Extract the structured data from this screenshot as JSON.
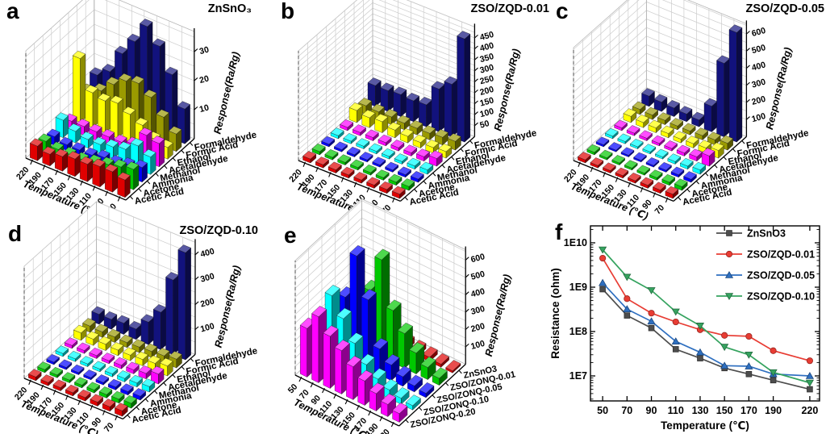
{
  "figure": {
    "background": "#ffffff"
  },
  "chart_data": [
    {
      "id": "a",
      "type": "bar3d",
      "letter": "a",
      "title": "ZnSnO₃",
      "xlabel": "Temperature (℃)",
      "zlabel": "Response(Ra/Rg)",
      "temps": [
        "220",
        "190",
        "170",
        "150",
        "130",
        "110",
        "90",
        "70"
      ],
      "zticks": [
        10,
        20,
        30
      ],
      "zmax": 37,
      "rows": [
        {
          "label": "Formaldehyde",
          "color": "#12127D",
          "values": [
            11,
            14,
            22,
            28,
            35,
            30,
            22,
            12
          ]
        },
        {
          "label": "Formic Acid",
          "color": "#9A9A00",
          "values": [
            8,
            10,
            14,
            17,
            18,
            15,
            10,
            6
          ]
        },
        {
          "label": "Ethanol",
          "color": "#FFFF00",
          "values": [
            22,
            12,
            11,
            12,
            10,
            8,
            5,
            4
          ]
        },
        {
          "label": "Acetaldehyde",
          "color": "#FF00FF",
          "values": [
            3,
            3,
            3,
            3,
            3,
            4,
            9,
            8
          ]
        },
        {
          "label": "Methanol",
          "color": "#00FFFF",
          "values": [
            6,
            4,
            3,
            3,
            4,
            5,
            8,
            6
          ]
        },
        {
          "label": "Ammonia",
          "color": "#0000FF",
          "values": [
            3,
            2,
            2,
            2,
            3,
            3,
            4,
            5
          ]
        },
        {
          "label": "Acetone",
          "color": "#00C800",
          "values": [
            4,
            3,
            3,
            3,
            4,
            5,
            6,
            7
          ]
        },
        {
          "label": "Acetic Acid",
          "color": "#E00000",
          "values": [
            5,
            4,
            5,
            6,
            6,
            7,
            7,
            6
          ]
        }
      ]
    },
    {
      "id": "b",
      "type": "bar3d",
      "letter": "b",
      "title": "ZSO/ZQD-0.01",
      "xlabel": "Temperature (℃)",
      "zlabel": "Response(Ra/Rg)",
      "temps": [
        "220",
        "190",
        "170",
        "150",
        "130",
        "110",
        "90",
        "70"
      ],
      "zticks": [
        50,
        100,
        150,
        200,
        250,
        300,
        350,
        400,
        450
      ],
      "zmax": 500,
      "rows": [
        {
          "label": "Formaldehyde",
          "color": "#12127D",
          "values": [
            95,
            95,
            100,
            95,
            100,
            195,
            240,
            470
          ]
        },
        {
          "label": "Formic Acid",
          "color": "#9A9A00",
          "values": [
            40,
            35,
            35,
            30,
            30,
            30,
            35,
            40
          ]
        },
        {
          "label": "Ethanol",
          "color": "#FFFF00",
          "values": [
            55,
            45,
            50,
            35,
            30,
            25,
            25,
            30
          ]
        },
        {
          "label": "Acetaldehyde",
          "color": "#FF00FF",
          "values": [
            15,
            15,
            15,
            15,
            15,
            15,
            20,
            35
          ]
        },
        {
          "label": "Methanol",
          "color": "#00FFFF",
          "values": [
            14,
            12,
            12,
            12,
            12,
            12,
            15,
            20
          ]
        },
        {
          "label": "Ammonia",
          "color": "#0000FF",
          "values": [
            12,
            10,
            10,
            10,
            10,
            10,
            12,
            15
          ]
        },
        {
          "label": "Acetone",
          "color": "#00C800",
          "values": [
            15,
            12,
            12,
            12,
            12,
            12,
            15,
            18
          ]
        },
        {
          "label": "Acetic Acid",
          "color": "#E00000",
          "values": [
            18,
            15,
            15,
            15,
            15,
            15,
            18,
            20
          ]
        }
      ]
    },
    {
      "id": "c",
      "type": "bar3d",
      "letter": "c",
      "title": "ZSO/ZQD-0.05",
      "xlabel": "Temperature (℃)",
      "zlabel": "Response(Ra/Rg)",
      "temps": [
        "220",
        "190",
        "170",
        "150",
        "130",
        "110",
        "90",
        "70"
      ],
      "zticks": [
        100,
        200,
        300,
        400,
        500,
        600
      ],
      "zmax": 660,
      "rows": [
        {
          "label": "Formaldehyde",
          "color": "#12127D",
          "values": [
            60,
            55,
            50,
            45,
            40,
            150,
            430,
            640
          ]
        },
        {
          "label": "Formic Acid",
          "color": "#9A9A00",
          "values": [
            30,
            26,
            25,
            22,
            22,
            25,
            30,
            40
          ]
        },
        {
          "label": "Ethanol",
          "color": "#FFFF00",
          "values": [
            36,
            30,
            28,
            25,
            22,
            25,
            30,
            45
          ]
        },
        {
          "label": "Acetaldehyde",
          "color": "#FF00FF",
          "values": [
            16,
            15,
            15,
            15,
            15,
            18,
            25,
            60
          ]
        },
        {
          "label": "Methanol",
          "color": "#00FFFF",
          "values": [
            15,
            13,
            12,
            12,
            12,
            15,
            18,
            25
          ]
        },
        {
          "label": "Ammonia",
          "color": "#0000FF",
          "values": [
            12,
            10,
            10,
            10,
            10,
            12,
            15,
            18
          ]
        },
        {
          "label": "Acetone",
          "color": "#00C800",
          "values": [
            15,
            12,
            12,
            12,
            12,
            15,
            18,
            22
          ]
        },
        {
          "label": "Acetic Acid",
          "color": "#E00000",
          "values": [
            18,
            15,
            15,
            15,
            15,
            18,
            20,
            25
          ]
        }
      ]
    },
    {
      "id": "d",
      "type": "bar3d",
      "letter": "d",
      "title": "ZSO/ZQD-0.10",
      "xlabel": "Temperature (℃)",
      "zlabel": "Response(Ra/Rg)",
      "temps": [
        "220",
        "190",
        "170",
        "150",
        "130",
        "110",
        "90",
        "70"
      ],
      "zticks": [
        100,
        200,
        300,
        400
      ],
      "zmax": 450,
      "rows": [
        {
          "label": "Formaldehyde",
          "color": "#12127D",
          "values": [
            40,
            40,
            45,
            42,
            90,
            150,
            300,
            430
          ]
        },
        {
          "label": "Formic Acid",
          "color": "#9A9A00",
          "values": [
            25,
            22,
            22,
            20,
            22,
            25,
            28,
            35
          ]
        },
        {
          "label": "Ethanol",
          "color": "#FFFF00",
          "values": [
            30,
            25,
            25,
            22,
            22,
            25,
            30,
            40
          ]
        },
        {
          "label": "Acetaldehyde",
          "color": "#FF00FF",
          "values": [
            12,
            12,
            12,
            12,
            14,
            16,
            22,
            40
          ]
        },
        {
          "label": "Methanol",
          "color": "#00FFFF",
          "values": [
            12,
            11,
            11,
            11,
            12,
            14,
            16,
            22
          ]
        },
        {
          "label": "Ammonia",
          "color": "#0000FF",
          "values": [
            10,
            9,
            9,
            9,
            10,
            12,
            14,
            16
          ]
        },
        {
          "label": "Acetone",
          "color": "#00C800",
          "values": [
            12,
            11,
            11,
            11,
            12,
            14,
            16,
            20
          ]
        },
        {
          "label": "Acetic Acid",
          "color": "#E00000",
          "values": [
            15,
            13,
            13,
            13,
            14,
            16,
            18,
            22
          ]
        }
      ]
    },
    {
      "id": "e",
      "type": "bar3d",
      "letter": "e",
      "title": "",
      "xlabel": "Temperature (℃)",
      "zlabel": "Response(Ra/Rg)",
      "temps": [
        "50",
        "70",
        "90",
        "110",
        "130",
        "150",
        "170",
        "190",
        "220"
      ],
      "zticks": [
        100,
        200,
        300,
        400,
        500,
        600
      ],
      "zmax": 660,
      "rows": [
        {
          "label": "ZnSnO3",
          "color": "#E00000",
          "values": [
            12,
            18,
            25,
            32,
            35,
            30,
            25,
            18,
            12
          ]
        },
        {
          "label": "ZSO/ZONQ-0.01",
          "color": "#00C800",
          "values": [
            100,
            200,
            350,
            560,
            300,
            200,
            120,
            70,
            40
          ]
        },
        {
          "label": "ZSO/ZONQ-0.05",
          "color": "#0000FF",
          "values": [
            180,
            350,
            620,
            400,
            150,
            90,
            55,
            35,
            25
          ]
        },
        {
          "label": "ZSO/ZONQ-0.10",
          "color": "#00FFFF",
          "values": [
            250,
            430,
            330,
            220,
            130,
            80,
            50,
            35,
            25
          ]
        },
        {
          "label": "ZSO/ZONQ-0.20",
          "color": "#FF00FF",
          "values": [
            280,
            380,
            300,
            250,
            190,
            140,
            100,
            70,
            50
          ]
        }
      ]
    },
    {
      "id": "f",
      "type": "line",
      "letter": "f",
      "xlabel": "Temperature (℃)",
      "ylabel": "Resistance (ohm)",
      "xticks": [
        50,
        70,
        90,
        110,
        130,
        150,
        170,
        190,
        220
      ],
      "ytick_labels": [
        "1E7",
        "1E8",
        "1E9",
        "1E10"
      ],
      "yticks": [
        10000000,
        100000000,
        1000000000,
        10000000000
      ],
      "series": [
        {
          "name": "ZnSnO3",
          "color": "#4D4D4D",
          "marker": "square",
          "values": [
            900000000.0,
            230000000.0,
            120000000.0,
            40000000.0,
            25000000.0,
            15000000.0,
            11000000.0,
            8000000.0,
            5000000.0
          ]
        },
        {
          "name": "ZSO/ZQD-0.01",
          "color": "#E83C33",
          "marker": "circle",
          "values": [
            4500000000.0,
            550000000.0,
            260000000.0,
            165000000.0,
            110000000.0,
            82000000.0,
            78000000.0,
            37000000.0,
            22000000.0
          ]
        },
        {
          "name": "ZSO/ZQD-0.05",
          "color": "#2E6FC0",
          "marker": "triangle-up",
          "values": [
            1250000000.0,
            320000000.0,
            170000000.0,
            60000000.0,
            34000000.0,
            17000000.0,
            16500000.0,
            11000000.0,
            10000000.0
          ]
        },
        {
          "name": "ZSO/ZQD-0.10",
          "color": "#35A35F",
          "marker": "triangle-down",
          "values": [
            7000000000.0,
            1700000000.0,
            850000000.0,
            280000000.0,
            135000000.0,
            45000000.0,
            30000000.0,
            12000000.0,
            7000000.0
          ]
        }
      ]
    }
  ]
}
